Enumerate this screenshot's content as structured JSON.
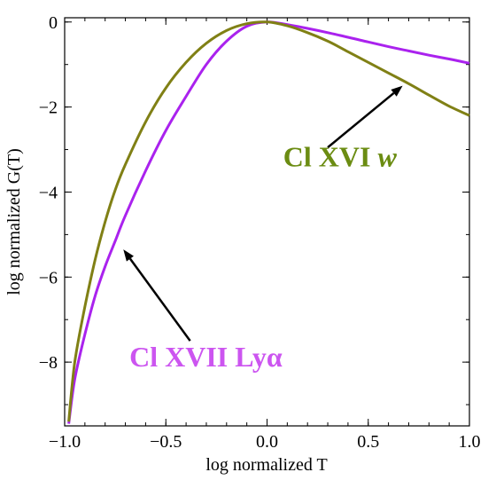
{
  "chart_data": {
    "type": "line",
    "title": "",
    "xlabel": "log normalized T",
    "ylabel": "log normalized G(T)",
    "xlim": [
      -1.0,
      1.0
    ],
    "ylim": [
      -9.5,
      0.1
    ],
    "xticks": [
      -1.0,
      -0.5,
      0.0,
      0.5,
      1.0
    ],
    "xtick_labels": [
      "−1.0",
      "−0.5",
      "0.0",
      "0.5",
      "1.0"
    ],
    "yticks": [
      0,
      -2,
      -4,
      -6,
      -8
    ],
    "ytick_labels": [
      "0",
      "−2",
      "−4",
      "−6",
      "−8"
    ],
    "grid": false,
    "legend": "none",
    "series": [
      {
        "id": "cl17",
        "color": "#aa22ee",
        "x": [
          -0.98,
          -0.95,
          -0.9,
          -0.85,
          -0.8,
          -0.75,
          -0.7,
          -0.6,
          -0.5,
          -0.4,
          -0.3,
          -0.2,
          -0.1,
          0.0,
          0.1,
          0.2,
          0.3,
          0.4,
          0.5,
          0.6,
          0.7,
          0.8,
          0.9,
          1.0
        ],
        "y": [
          -9.45,
          -8.4,
          -7.35,
          -6.45,
          -5.75,
          -5.15,
          -4.55,
          -3.5,
          -2.55,
          -1.75,
          -1.0,
          -0.45,
          -0.1,
          0.0,
          -0.06,
          -0.15,
          -0.25,
          -0.36,
          -0.47,
          -0.58,
          -0.68,
          -0.78,
          -0.87,
          -0.97
        ]
      },
      {
        "id": "cl16",
        "color": "#808015",
        "x": [
          -0.98,
          -0.95,
          -0.9,
          -0.85,
          -0.8,
          -0.75,
          -0.7,
          -0.6,
          -0.5,
          -0.4,
          -0.3,
          -0.2,
          -0.1,
          0.0,
          0.1,
          0.2,
          0.3,
          0.4,
          0.5,
          0.6,
          0.7,
          0.8,
          0.9,
          1.0
        ],
        "y": [
          -9.4,
          -8.0,
          -6.7,
          -5.6,
          -4.7,
          -3.95,
          -3.35,
          -2.35,
          -1.55,
          -0.95,
          -0.5,
          -0.2,
          -0.04,
          0.0,
          -0.09,
          -0.25,
          -0.45,
          -0.7,
          -0.95,
          -1.2,
          -1.45,
          -1.72,
          -1.98,
          -2.2
        ]
      }
    ],
    "annotations": [
      {
        "text": "Cl XVI ",
        "italic": "w",
        "color": "#6b8c12",
        "tx": 0.08,
        "ty": -3.4,
        "ax_from": [
          0.3,
          -2.95
        ],
        "ax_to": [
          0.67,
          -1.5
        ]
      },
      {
        "text": "Cl XVII Lyα",
        "italic": "",
        "color": "#cc55f0",
        "tx": -0.68,
        "ty": -8.1,
        "ax_from": [
          -0.38,
          -7.5
        ],
        "ax_to": [
          -0.71,
          -5.35
        ]
      }
    ]
  }
}
